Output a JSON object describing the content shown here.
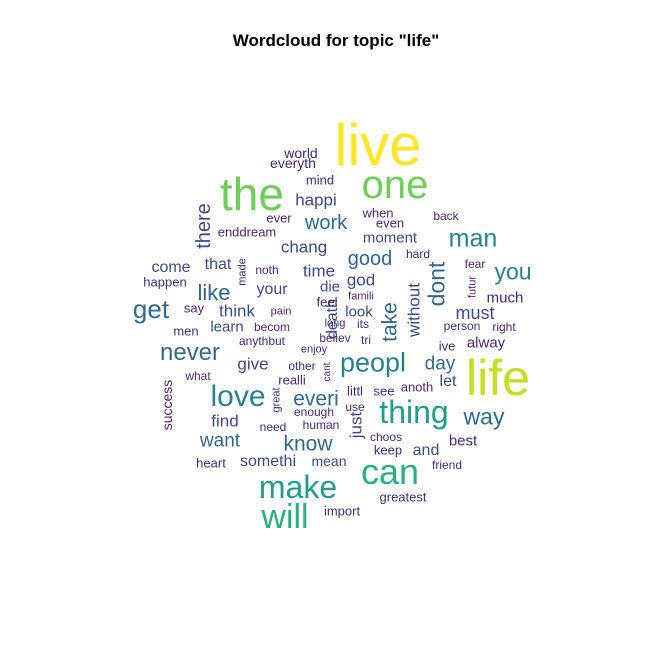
{
  "title": "Wordcloud for topic \"life\"",
  "colors": {
    "c1": "#fde725",
    "c2": "#c2df23",
    "c3": "#6ece58",
    "c4": "#2ab07f",
    "c5": "#1f9e89",
    "c6": "#26828e",
    "c7": "#31688e",
    "c8": "#3e4989",
    "c9": "#482878"
  },
  "words": [
    {
      "text": "live",
      "c": "c1"
    },
    {
      "text": "life",
      "c": "c2"
    },
    {
      "text": "the",
      "c": "c3"
    },
    {
      "text": "one",
      "c": "c3"
    },
    {
      "text": "can",
      "c": "c4"
    },
    {
      "text": "will",
      "c": "c4"
    },
    {
      "text": "make",
      "c": "c5"
    },
    {
      "text": "thing",
      "c": "c5"
    },
    {
      "text": "peopl",
      "c": "c6"
    },
    {
      "text": "love",
      "c": "c6"
    },
    {
      "text": "man",
      "c": "c6"
    },
    {
      "text": "you",
      "c": "c6"
    },
    {
      "text": "never",
      "c": "c7"
    },
    {
      "text": "get",
      "c": "c7"
    },
    {
      "text": "way",
      "c": "c7"
    },
    {
      "text": "know",
      "c": "c7"
    },
    {
      "text": "everi",
      "c": "c7"
    },
    {
      "text": "take",
      "c": "c7"
    },
    {
      "text": "dont",
      "c": "c7"
    },
    {
      "text": "work",
      "c": "c7"
    },
    {
      "text": "good",
      "c": "c7"
    },
    {
      "text": "happi",
      "c": "c8"
    },
    {
      "text": "chang",
      "c": "c8"
    },
    {
      "text": "there",
      "c": "c8"
    },
    {
      "text": "like",
      "c": "c7"
    },
    {
      "text": "want",
      "c": "c7"
    },
    {
      "text": "day",
      "c": "c7"
    },
    {
      "text": "must",
      "c": "c8"
    },
    {
      "text": "time",
      "c": "c8"
    },
    {
      "text": "god",
      "c": "c8"
    },
    {
      "text": "think",
      "c": "c8"
    },
    {
      "text": "find",
      "c": "c8"
    },
    {
      "text": "give",
      "c": "c8"
    },
    {
      "text": "without",
      "c": "c8"
    },
    {
      "text": "just",
      "c": "c8"
    },
    {
      "text": "moment",
      "c": "c8"
    },
    {
      "text": "come",
      "c": "c8"
    },
    {
      "text": "your",
      "c": "c8"
    },
    {
      "text": "death",
      "c": "c8"
    },
    {
      "text": "die",
      "c": "c8"
    },
    {
      "text": "look",
      "c": "c8"
    },
    {
      "text": "let",
      "c": "c8"
    },
    {
      "text": "somethi",
      "c": "c8"
    },
    {
      "text": "mean",
      "c": "c8"
    },
    {
      "text": "and",
      "c": "c8"
    },
    {
      "text": "best",
      "c": "c9"
    },
    {
      "text": "much",
      "c": "c9"
    },
    {
      "text": "alway",
      "c": "c9"
    },
    {
      "text": "that",
      "c": "c8"
    },
    {
      "text": "learn",
      "c": "c8"
    },
    {
      "text": "world",
      "c": "c9"
    },
    {
      "text": "everyth",
      "c": "c9"
    },
    {
      "text": "mind",
      "c": "c9"
    },
    {
      "text": "when",
      "c": "c9"
    },
    {
      "text": "even",
      "c": "c9"
    },
    {
      "text": "back",
      "c": "c9"
    },
    {
      "text": "ever",
      "c": "c9"
    },
    {
      "text": "enddream",
      "c": "c9"
    },
    {
      "text": "hard",
      "c": "c9"
    },
    {
      "text": "fear",
      "c": "c9"
    },
    {
      "text": "futur",
      "c": "c9"
    },
    {
      "text": "made",
      "c": "c9"
    },
    {
      "text": "noth",
      "c": "c9"
    },
    {
      "text": "happen",
      "c": "c9"
    },
    {
      "text": "say",
      "c": "c9"
    },
    {
      "text": "pain",
      "c": "c9"
    },
    {
      "text": "feel",
      "c": "c9"
    },
    {
      "text": "famili",
      "c": "c9"
    },
    {
      "text": "men",
      "c": "c9"
    },
    {
      "text": "becom",
      "c": "c9"
    },
    {
      "text": "long",
      "c": "c9"
    },
    {
      "text": "its",
      "c": "c9"
    },
    {
      "text": "person",
      "c": "c9"
    },
    {
      "text": "right",
      "c": "c9"
    },
    {
      "text": "anythbut",
      "c": "c9"
    },
    {
      "text": "believ",
      "c": "c9"
    },
    {
      "text": "tri",
      "c": "c9"
    },
    {
      "text": "ive",
      "c": "c9"
    },
    {
      "text": "enjoy",
      "c": "c9"
    },
    {
      "text": "other",
      "c": "c9"
    },
    {
      "text": "cant",
      "c": "c9"
    },
    {
      "text": "what",
      "c": "c9"
    },
    {
      "text": "realli",
      "c": "c9"
    },
    {
      "text": "littl",
      "c": "c9"
    },
    {
      "text": "see",
      "c": "c9"
    },
    {
      "text": "anoth",
      "c": "c9"
    },
    {
      "text": "success",
      "c": "c9"
    },
    {
      "text": "great",
      "c": "c9"
    },
    {
      "text": "enough",
      "c": "c9"
    },
    {
      "text": "use",
      "c": "c9"
    },
    {
      "text": "need",
      "c": "c9"
    },
    {
      "text": "human",
      "c": "c9"
    },
    {
      "text": "choos",
      "c": "c9"
    },
    {
      "text": "keep",
      "c": "c9"
    },
    {
      "text": "heart",
      "c": "c9"
    },
    {
      "text": "friend",
      "c": "c9"
    },
    {
      "text": "greatest",
      "c": "c9"
    },
    {
      "text": "import",
      "c": "c9"
    }
  ]
}
